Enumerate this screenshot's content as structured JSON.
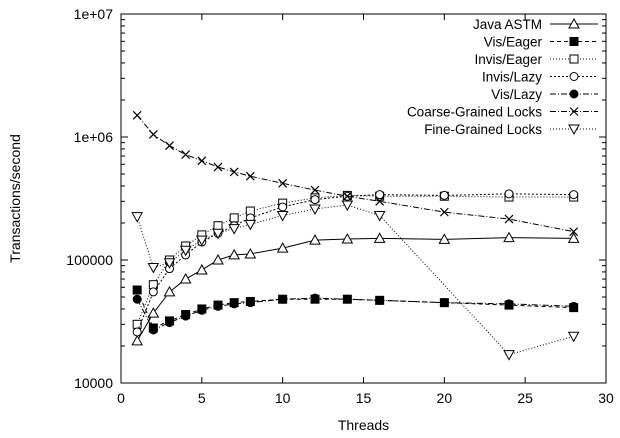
{
  "chart_data": {
    "type": "line",
    "title": "",
    "xlabel": "Threads",
    "ylabel": "Transactions/second",
    "xlim": [
      0,
      30
    ],
    "ylim": [
      10000,
      10000000
    ],
    "yscale": "log",
    "grid": false,
    "legend_position": "top-right",
    "x_ticks": [
      {
        "value": 0,
        "label": "0"
      },
      {
        "value": 5,
        "label": "5"
      },
      {
        "value": 10,
        "label": "10"
      },
      {
        "value": 15,
        "label": "15"
      },
      {
        "value": 20,
        "label": "20"
      },
      {
        "value": 25,
        "label": "25"
      },
      {
        "value": 30,
        "label": "30"
      }
    ],
    "y_ticks": [
      {
        "value": 10000,
        "label": "10000"
      },
      {
        "value": 100000,
        "label": "100000"
      },
      {
        "value": 1000000,
        "label": "1e+06"
      },
      {
        "value": 10000000,
        "label": "1e+07"
      }
    ],
    "series": [
      {
        "name": "Java ASTM",
        "marker": "triangle-up",
        "dash": "",
        "color": "#000000",
        "x": [
          1,
          2,
          3,
          4,
          5,
          6,
          7,
          8,
          10,
          12,
          14,
          16,
          20,
          24,
          28
        ],
        "y": [
          22000,
          37000,
          55000,
          70000,
          83000,
          100000,
          110000,
          112000,
          125000,
          145000,
          148000,
          150000,
          147000,
          152000,
          150000
        ]
      },
      {
        "name": "Vis/Eager",
        "marker": "square-filled",
        "dash": "4,3",
        "color": "#000000",
        "x": [
          1,
          2,
          3,
          4,
          5,
          6,
          7,
          8,
          10,
          12,
          14,
          16,
          20,
          24,
          28
        ],
        "y": [
          57000,
          28000,
          32000,
          36000,
          40000,
          43000,
          45000,
          46000,
          48000,
          48000,
          48000,
          47000,
          45000,
          43000,
          41000
        ]
      },
      {
        "name": "Invis/Eager",
        "marker": "square-open",
        "dash": "1,2",
        "color": "#000000",
        "x": [
          1,
          2,
          3,
          4,
          5,
          6,
          7,
          8,
          10,
          12,
          14,
          16,
          20,
          24,
          28
        ],
        "y": [
          30000,
          63000,
          100000,
          130000,
          160000,
          190000,
          220000,
          250000,
          290000,
          320000,
          335000,
          330000,
          330000,
          325000,
          325000
        ]
      },
      {
        "name": "Invis/Lazy",
        "marker": "circle-open",
        "dash": "2,2",
        "color": "#000000",
        "x": [
          1,
          2,
          3,
          4,
          5,
          6,
          7,
          8,
          10,
          12,
          14,
          16,
          20,
          24,
          28
        ],
        "y": [
          26000,
          55000,
          85000,
          110000,
          140000,
          165000,
          190000,
          220000,
          270000,
          310000,
          330000,
          340000,
          335000,
          345000,
          340000
        ]
      },
      {
        "name": "Vis/Lazy",
        "marker": "circle-filled",
        "dash": "6,2,1,2",
        "color": "#000000",
        "x": [
          1,
          2,
          3,
          4,
          5,
          6,
          7,
          8,
          10,
          12,
          14,
          16,
          20,
          24,
          28
        ],
        "y": [
          48000,
          27000,
          31000,
          35000,
          39000,
          42000,
          44000,
          45000,
          48000,
          49000,
          48000,
          47000,
          45000,
          44000,
          42000
        ]
      },
      {
        "name": "Coarse-Grained Locks",
        "marker": "x",
        "dash": "6,2,1,2",
        "color": "#000000",
        "x": [
          1,
          2,
          3,
          4,
          5,
          6,
          7,
          8,
          10,
          12,
          14,
          16,
          20,
          24,
          28
        ],
        "y": [
          1500000,
          1050000,
          850000,
          720000,
          640000,
          570000,
          520000,
          480000,
          420000,
          370000,
          330000,
          300000,
          245000,
          215000,
          170000
        ]
      },
      {
        "name": "Fine-Grained Locks",
        "marker": "triangle-down",
        "dash": "1,2",
        "color": "#000000",
        "x": [
          1,
          2,
          3,
          4,
          5,
          6,
          7,
          8,
          10,
          12,
          14,
          16,
          24,
          28
        ],
        "y": [
          225000,
          87000,
          95000,
          120000,
          145000,
          165000,
          180000,
          195000,
          230000,
          260000,
          280000,
          230000,
          17000,
          24000
        ]
      }
    ]
  }
}
